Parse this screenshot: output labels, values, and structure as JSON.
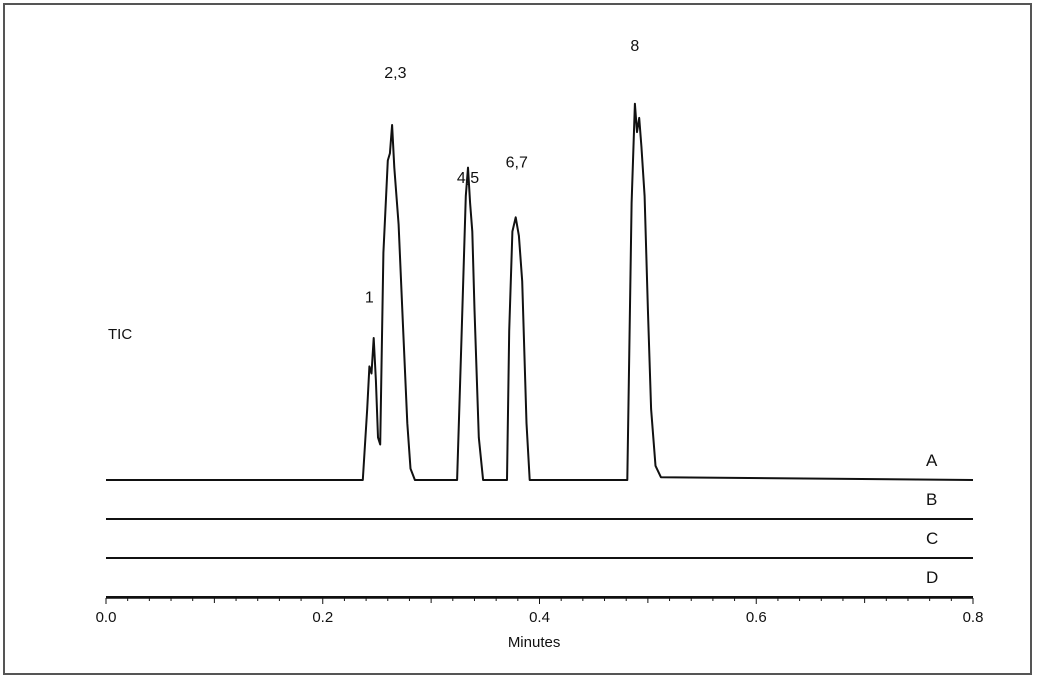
{
  "chart_data": {
    "type": "line",
    "title": "",
    "xlabel": "Minutes",
    "ylabel": "",
    "xlim": [
      0.0,
      0.8
    ],
    "grid": false,
    "x_ticks": [
      "0.0",
      "0.2",
      "0.4",
      "0.6",
      "0.8"
    ],
    "side_label": "TIC",
    "series": [
      {
        "name": "A",
        "points": [
          [
            0.0,
            0
          ],
          [
            0.237,
            0
          ],
          [
            0.241,
            50
          ],
          [
            0.243,
            80
          ],
          [
            0.245,
            75
          ],
          [
            0.247,
            100
          ],
          [
            0.249,
            70
          ],
          [
            0.251,
            30
          ],
          [
            0.253,
            25
          ],
          [
            0.256,
            160
          ],
          [
            0.26,
            225
          ],
          [
            0.262,
            230
          ],
          [
            0.264,
            250
          ],
          [
            0.266,
            220
          ],
          [
            0.27,
            180
          ],
          [
            0.274,
            110
          ],
          [
            0.278,
            40
          ],
          [
            0.281,
            8
          ],
          [
            0.285,
            0
          ],
          [
            0.324,
            0
          ],
          [
            0.328,
            100
          ],
          [
            0.332,
            200
          ],
          [
            0.334,
            220
          ],
          [
            0.336,
            195
          ],
          [
            0.338,
            175
          ],
          [
            0.34,
            120
          ],
          [
            0.344,
            30
          ],
          [
            0.348,
            0
          ],
          [
            0.37,
            0
          ],
          [
            0.372,
            105
          ],
          [
            0.375,
            175
          ],
          [
            0.378,
            185
          ],
          [
            0.381,
            172
          ],
          [
            0.384,
            140
          ],
          [
            0.388,
            40
          ],
          [
            0.391,
            0
          ],
          [
            0.481,
            0
          ],
          [
            0.485,
            195
          ],
          [
            0.488,
            265
          ],
          [
            0.49,
            245
          ],
          [
            0.492,
            255
          ],
          [
            0.494,
            235
          ],
          [
            0.497,
            200
          ],
          [
            0.5,
            120
          ],
          [
            0.503,
            50
          ],
          [
            0.507,
            10
          ],
          [
            0.512,
            2
          ],
          [
            0.8,
            0
          ]
        ]
      },
      {
        "name": "B",
        "points": [
          [
            0.0,
            0
          ],
          [
            0.8,
            0
          ]
        ]
      },
      {
        "name": "C",
        "points": [
          [
            0.0,
            0
          ],
          [
            0.8,
            0
          ]
        ]
      },
      {
        "name": "D",
        "points": [
          [
            0.0,
            0
          ],
          [
            0.8,
            0
          ]
        ]
      }
    ],
    "peak_annotations": [
      {
        "label": "1",
        "x": 0.243,
        "y": 125
      },
      {
        "label": "2,3",
        "x": 0.267,
        "y": 283
      },
      {
        "label": "4,5",
        "x": 0.334,
        "y": 209
      },
      {
        "label": "6,7",
        "x": 0.379,
        "y": 220
      },
      {
        "label": "8",
        "x": 0.488,
        "y": 302
      }
    ]
  }
}
